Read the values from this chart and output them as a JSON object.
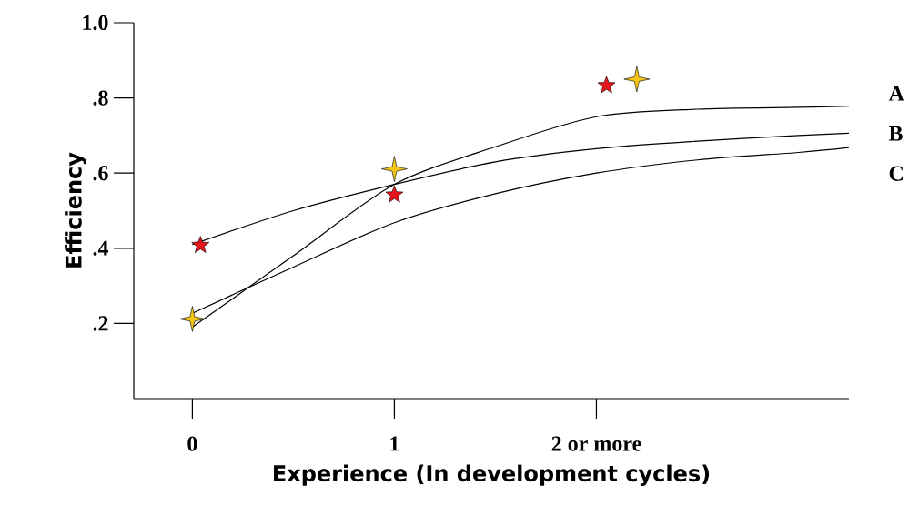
{
  "chart_data": {
    "type": "line",
    "xlabel": "Experience (In development cycles)",
    "ylabel": "Efficiency",
    "xlim": [
      -0.29,
      3.25
    ],
    "ylim": [
      0,
      1.0
    ],
    "xticks": [
      0,
      1,
      {
        "value": 2,
        "label": "2 or more"
      }
    ],
    "yticks": [
      {
        "value": 0.2,
        "label": ".2"
      },
      {
        "value": 0.4,
        "label": ".4"
      },
      {
        "value": 0.6,
        "label": ".6"
      },
      {
        "value": 0.8,
        "label": ".8"
      },
      {
        "value": 1.0,
        "label": "1.0"
      }
    ],
    "line_style": "solid",
    "series": [
      {
        "name": "A",
        "color": "#000000",
        "marker": "none",
        "x": [
          0,
          0.5,
          1,
          1.5,
          2,
          2.5,
          3,
          3.25
        ],
        "values": [
          0.19,
          0.38,
          0.57,
          0.67,
          0.75,
          0.77,
          0.775,
          0.778
        ]
      },
      {
        "name": "B",
        "color": "#000000",
        "marker": "none",
        "x": [
          0,
          0.5,
          1,
          1.5,
          2,
          2.5,
          3,
          3.25
        ],
        "values": [
          0.41,
          0.5,
          0.57,
          0.63,
          0.665,
          0.685,
          0.7,
          0.706
        ]
      },
      {
        "name": "C",
        "color": "#000000",
        "marker": "none",
        "x": [
          0,
          0.5,
          1,
          1.5,
          2,
          2.5,
          3,
          3.25
        ],
        "values": [
          0.227,
          0.35,
          0.468,
          0.545,
          0.6,
          0.635,
          0.655,
          0.668
        ]
      },
      {
        "type": "scatter",
        "color": "#e8141c",
        "marker": "star",
        "x": [
          0.04,
          1,
          2.05
        ],
        "values": [
          0.408,
          0.542,
          0.833
        ]
      },
      {
        "type": "scatter",
        "color": "#f5c518",
        "marker": "diamond",
        "x": [
          0,
          1,
          2.2
        ],
        "values": [
          0.212,
          0.611,
          0.85
        ]
      }
    ]
  }
}
